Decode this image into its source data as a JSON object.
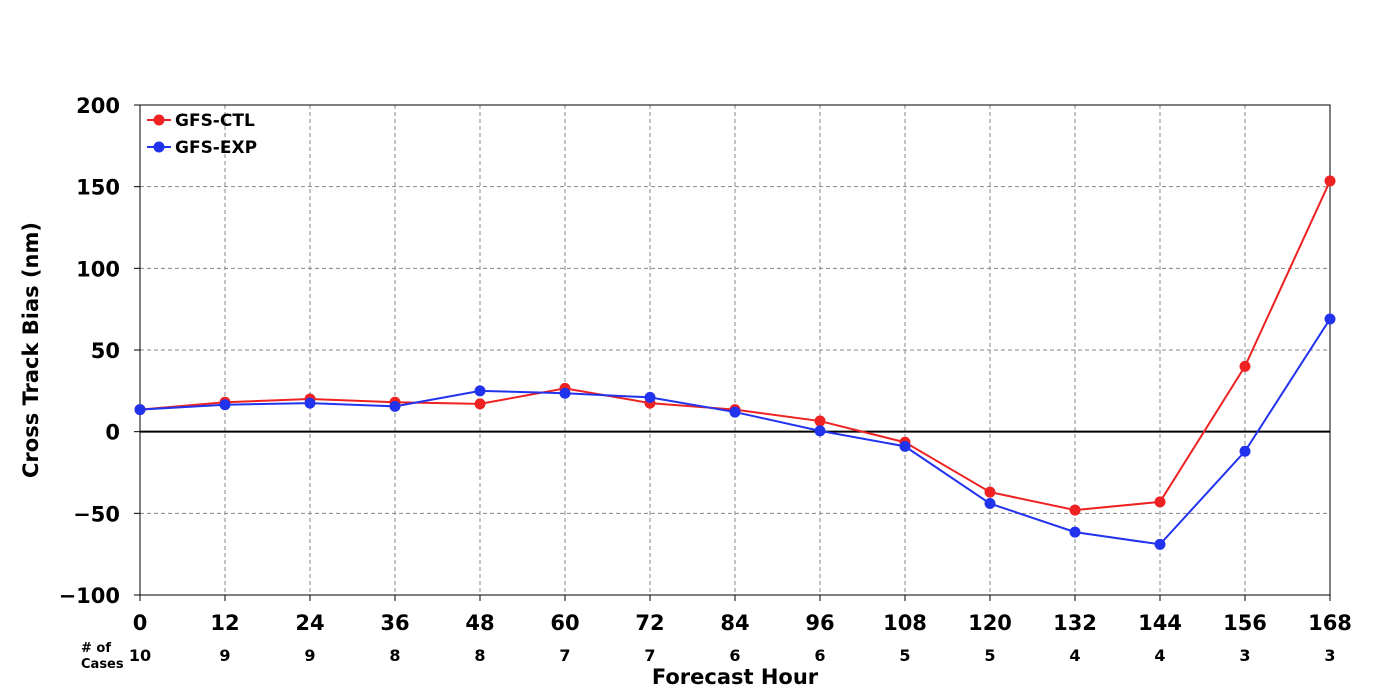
{
  "chart_data": {
    "type": "line",
    "title": "",
    "xlabel": "Forecast Hour",
    "ylabel": "Cross Track Bias (nm)",
    "x": [
      0,
      12,
      24,
      36,
      48,
      60,
      72,
      84,
      96,
      108,
      120,
      132,
      144,
      156,
      168
    ],
    "xlim": [
      0,
      168
    ],
    "ylim": [
      -100,
      200
    ],
    "yticks": [
      -100,
      -50,
      0,
      50,
      100,
      150,
      200
    ],
    "ytick_labels": [
      "−100",
      "−50",
      "0",
      "50",
      "100",
      "150",
      "200"
    ],
    "grid": true,
    "legend": "top-left",
    "series": [
      {
        "name": "GFS-CTL",
        "color": "#ee2222",
        "values": [
          13.5,
          18,
          20,
          18,
          17,
          26.5,
          17.5,
          13.5,
          6.5,
          -6.5,
          -37,
          -48,
          -43,
          40,
          153.5
        ]
      },
      {
        "name": "GFS-EXP",
        "color": "#2233ee",
        "values": [
          13.5,
          16.5,
          17.5,
          15.5,
          25,
          23.5,
          21,
          12,
          0.5,
          -9,
          -44,
          -61.5,
          -69,
          -12,
          69
        ]
      }
    ],
    "cases_label": [
      "# of",
      "Cases"
    ],
    "cases": [
      10,
      9,
      9,
      8,
      8,
      7,
      7,
      6,
      6,
      5,
      5,
      4,
      4,
      3,
      3
    ]
  }
}
